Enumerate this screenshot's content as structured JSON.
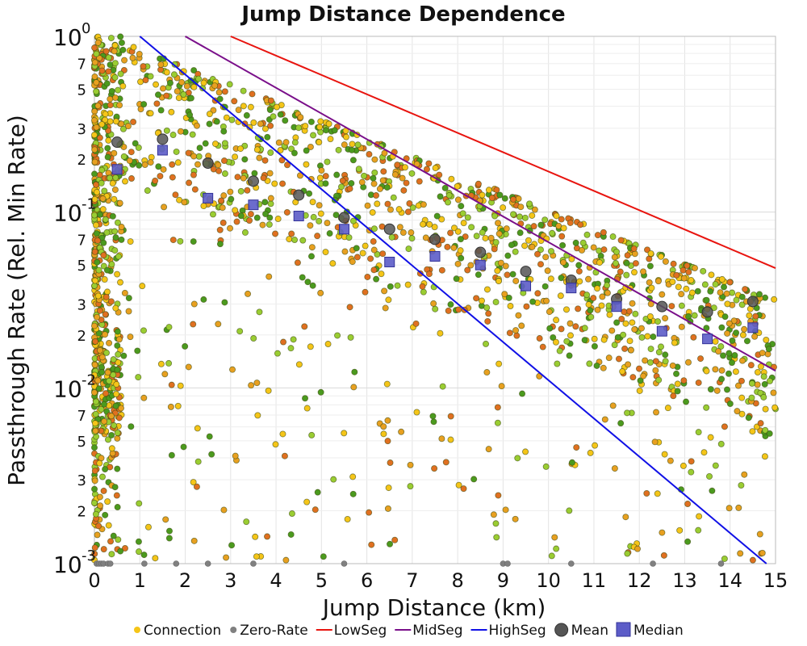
{
  "chart_data": {
    "type": "scatter",
    "title": "Jump Distance Dependence",
    "xlabel": "Jump Distance (km)",
    "ylabel": "Passthrough Rate (Rel. Min Rate)",
    "xlim": [
      0,
      15
    ],
    "ylim": [
      0.001,
      1
    ],
    "yscale": "log",
    "x_ticks": [
      "0",
      "1",
      "2",
      "3",
      "4",
      "5",
      "6",
      "7",
      "8",
      "9",
      "10",
      "11",
      "12",
      "13",
      "14",
      "15"
    ],
    "y_decade_ticks": [
      {
        "base": "10",
        "exp": "0",
        "value": 1
      },
      {
        "base": "10",
        "exp": "-1",
        "value": 0.1
      },
      {
        "base": "10",
        "exp": "-2",
        "value": 0.01
      },
      {
        "base": "10",
        "exp": "-3",
        "value": 0.001
      }
    ],
    "y_minor_labels": [
      "7",
      "5",
      "3",
      "2"
    ],
    "grid": true,
    "legend_position": "bottom",
    "lines": [
      {
        "name": "LowSeg",
        "color": "#e8140f",
        "points": [
          [
            3.0,
            1.0
          ],
          [
            15.0,
            0.048
          ]
        ]
      },
      {
        "name": "MidSeg",
        "color": "#7a0f8a",
        "points": [
          [
            2.0,
            1.0
          ],
          [
            15.0,
            0.0125
          ]
        ]
      },
      {
        "name": "HighSeg",
        "color": "#1010e6",
        "points": [
          [
            1.0,
            1.0
          ],
          [
            14.8,
            0.001
          ]
        ]
      }
    ],
    "mean": {
      "name": "Mean",
      "color": "#555555",
      "points": [
        [
          0.5,
          0.25
        ],
        [
          1.5,
          0.26
        ],
        [
          2.5,
          0.19
        ],
        [
          3.5,
          0.15
        ],
        [
          4.5,
          0.125
        ],
        [
          5.5,
          0.093
        ],
        [
          6.5,
          0.08
        ],
        [
          7.5,
          0.07
        ],
        [
          8.5,
          0.059
        ],
        [
          9.5,
          0.046
        ],
        [
          10.5,
          0.041
        ],
        [
          11.5,
          0.032
        ],
        [
          12.5,
          0.029
        ],
        [
          13.5,
          0.027
        ],
        [
          14.5,
          0.031
        ]
      ]
    },
    "median": {
      "name": "Median",
      "color": "#5c5cc8",
      "points": [
        [
          0.5,
          0.175
        ],
        [
          1.5,
          0.225
        ],
        [
          2.5,
          0.12
        ],
        [
          3.5,
          0.11
        ],
        [
          4.5,
          0.095
        ],
        [
          5.5,
          0.08
        ],
        [
          6.5,
          0.052
        ],
        [
          7.5,
          0.056
        ],
        [
          8.5,
          0.05
        ],
        [
          9.5,
          0.038
        ],
        [
          10.5,
          0.037
        ],
        [
          11.5,
          0.029
        ],
        [
          12.5,
          0.021
        ],
        [
          13.5,
          0.019
        ],
        [
          14.5,
          0.022
        ]
      ]
    },
    "connection": {
      "name": "Connection",
      "colors": [
        "#f5c518",
        "#e8a020",
        "#9acd32",
        "#4b9a1e",
        "#e07020"
      ],
      "description_count": 2000
    },
    "zero_rate": {
      "name": "Zero-Rate",
      "color": "#808080",
      "x": [
        0.05,
        0.1,
        0.15,
        0.2,
        0.3,
        0.35,
        1.1,
        1.8,
        2.5,
        3.5,
        5.5,
        9.0,
        9.1,
        10.5,
        12.3,
        13.8
      ]
    },
    "legend": [
      {
        "name": "Connection",
        "marker": "dot",
        "color": "#f5c518"
      },
      {
        "name": "Zero-Rate",
        "marker": "dot",
        "color": "#808080"
      },
      {
        "name": "LowSeg",
        "marker": "line",
        "color": "#e8140f"
      },
      {
        "name": "MidSeg",
        "marker": "line",
        "color": "#7a0f8a"
      },
      {
        "name": "HighSeg",
        "marker": "line",
        "color": "#1010e6"
      },
      {
        "name": "Mean",
        "marker": "circle",
        "color": "#555555"
      },
      {
        "name": "Median",
        "marker": "square",
        "color": "#5c5cc8"
      }
    ]
  }
}
